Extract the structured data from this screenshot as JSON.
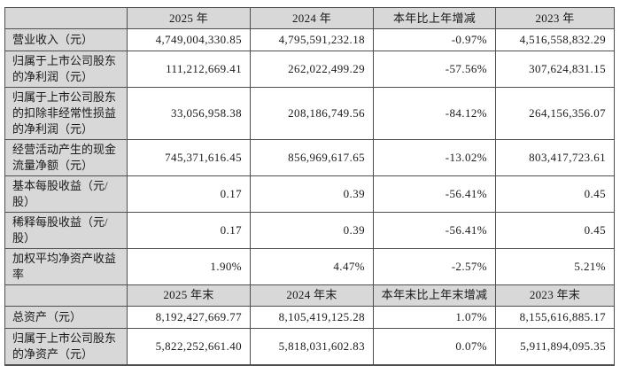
{
  "colors": {
    "header_bg": "#d8d8d8",
    "cell_bg": "#ffffff",
    "border": "#4f4f4f",
    "text": "#1a1a1a"
  },
  "table": {
    "sections": [
      {
        "header": {
          "corner": "",
          "cols": [
            "2025 年",
            "2024 年",
            "本年比上年增减",
            "2023 年"
          ]
        },
        "rows": [
          {
            "label": "营业收入（元）",
            "values": [
              "4,749,004,330.85",
              "4,795,591,232.18",
              "-0.97%",
              "4,516,558,832.29"
            ]
          },
          {
            "label": "归属于上市公司股东的净利润（元）",
            "values": [
              "111,212,669.41",
              "262,022,499.29",
              "-57.56%",
              "307,624,831.15"
            ]
          },
          {
            "label": "归属于上市公司股东的扣除非经常性损益的净利润（元）",
            "values": [
              "33,056,958.38",
              "208,186,749.56",
              "-84.12%",
              "264,156,356.07"
            ]
          },
          {
            "label": "经营活动产生的现金流量净额（元）",
            "values": [
              "745,371,616.45",
              "856,969,617.65",
              "-13.02%",
              "803,417,723.61"
            ]
          },
          {
            "label": "基本每股收益（元/股）",
            "values": [
              "0.17",
              "0.39",
              "-56.41%",
              "0.45"
            ]
          },
          {
            "label": "稀释每股收益（元/股）",
            "values": [
              "0.17",
              "0.39",
              "-56.41%",
              "0.45"
            ]
          },
          {
            "label": "加权平均净资产收益率",
            "values": [
              "1.90%",
              "4.47%",
              "-2.57%",
              "5.21%"
            ]
          }
        ]
      },
      {
        "header": {
          "corner": "",
          "cols": [
            "2025 年末",
            "2024 年末",
            "本年末比上年末增减",
            "2023 年末"
          ]
        },
        "rows": [
          {
            "label": "总资产（元）",
            "values": [
              "8,192,427,669.77",
              "8,105,419,125.28",
              "1.07%",
              "8,155,616,885.17"
            ]
          },
          {
            "label": "归属于上市公司股东的净资产（元）",
            "values": [
              "5,822,252,661.40",
              "5,818,031,602.83",
              "0.07%",
              "5,911,894,095.35"
            ]
          }
        ]
      }
    ]
  }
}
